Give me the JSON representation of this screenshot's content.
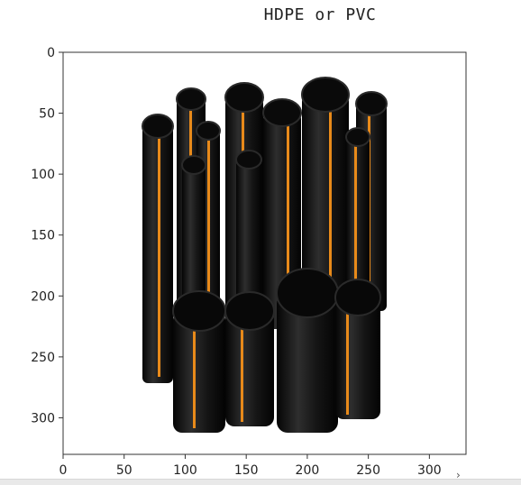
{
  "plot": {
    "title": "HDPE or PVC"
  },
  "chart_data": {
    "type": "image",
    "title": "HDPE or PVC",
    "xlabel": "",
    "ylabel": "",
    "xlim": [
      0,
      330
    ],
    "ylim": [
      330,
      0
    ],
    "xticks": [
      0,
      50,
      100,
      150,
      200,
      250,
      300
    ],
    "yticks": [
      0,
      50,
      100,
      150,
      200,
      250,
      300
    ],
    "grid": false,
    "content": "pipes-photo",
    "colors": {
      "pipe": "#141414",
      "stripe": "#e88a1a",
      "axes": "#333333"
    }
  }
}
